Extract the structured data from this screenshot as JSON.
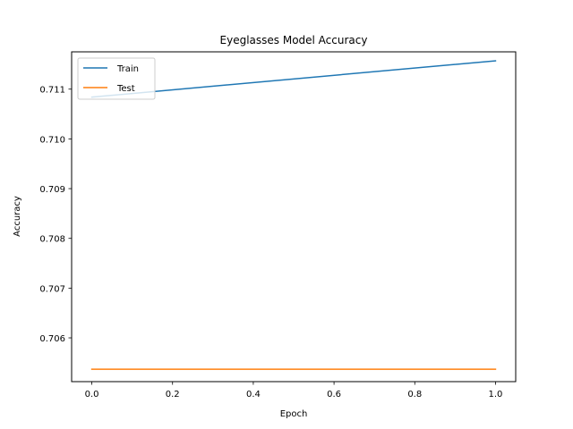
{
  "chart_data": {
    "type": "line",
    "title": "Eyeglasses Model Accuracy",
    "xlabel": "Epoch",
    "ylabel": "Accuracy",
    "xlim": [
      -0.05,
      1.05
    ],
    "ylim": [
      0.70512,
      0.71175
    ],
    "xticks": [
      0.0,
      0.2,
      0.4,
      0.6,
      0.8,
      1.0
    ],
    "xtick_labels": [
      "0.0",
      "0.2",
      "0.4",
      "0.6",
      "0.8",
      "1.0"
    ],
    "yticks": [
      0.706,
      0.707,
      0.708,
      0.709,
      0.71,
      0.711
    ],
    "ytick_labels": [
      "0.706",
      "0.707",
      "0.708",
      "0.709",
      "0.710",
      "0.711"
    ],
    "grid": false,
    "legend_position": "upper-left",
    "series": [
      {
        "name": "Train",
        "color": "#1f77b4",
        "x": [
          0.0,
          1.0
        ],
        "y": [
          0.71084,
          0.71157
        ]
      },
      {
        "name": "Test",
        "color": "#ff7f0e",
        "x": [
          0.0,
          1.0
        ],
        "y": [
          0.70537,
          0.70537
        ]
      }
    ]
  }
}
